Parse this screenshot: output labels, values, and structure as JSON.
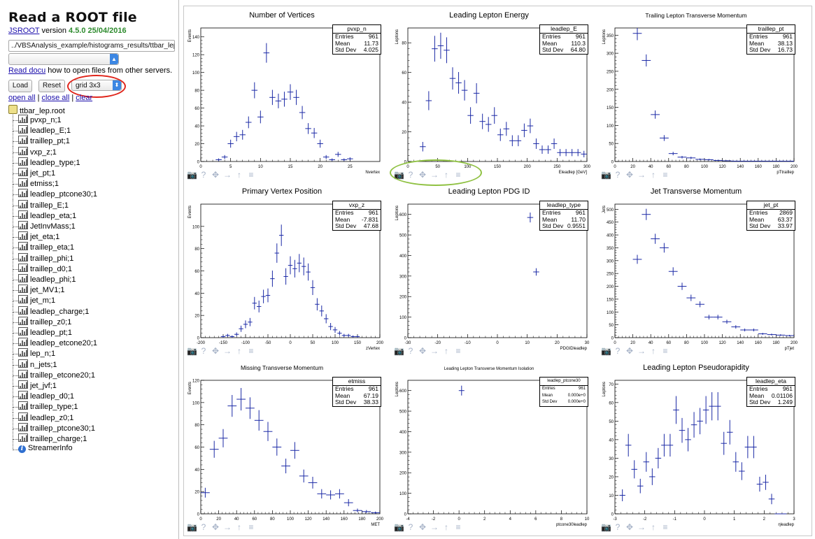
{
  "sidebar": {
    "title": "Read a ROOT file",
    "jsroot_link": "JSROOT",
    "version_prefix": "version",
    "version": "4.5.0 25/04/2016",
    "file_path": "../VBSAnalysis_example/histograms_results/ttbar_lep",
    "docu_link": "Read docu",
    "docu_text": "how to open files from other servers.",
    "load_label": "Load",
    "reset_label": "Reset",
    "layout_value": "grid 3x3",
    "open_all": "open all",
    "close_all": "close all",
    "clear": "clear",
    "separator": "|",
    "root_file": "ttbar_lep.root",
    "items": [
      "pvxp_n;1",
      "leadlep_E;1",
      "traillep_pt;1",
      "vxp_z;1",
      "leadlep_type;1",
      "jet_pt;1",
      "etmiss;1",
      "leadlep_ptcone30;1",
      "traillep_E;1",
      "leadlep_eta;1",
      "JetInvMass;1",
      "jet_eta;1",
      "traillep_eta;1",
      "traillep_phi;1",
      "traillep_d0;1",
      "leadlep_phi;1",
      "jet_MV1;1",
      "jet_m;1",
      "leadlep_charge;1",
      "traillep_z0;1",
      "leadlep_pt;1",
      "leadlep_etcone20;1",
      "lep_n;1",
      "n_jets;1",
      "traillep_etcone20;1",
      "jet_jvf;1",
      "leadlep_d0;1",
      "traillep_type;1",
      "leadlep_z0;1",
      "traillep_ptcone30;1",
      "traillep_charge;1"
    ],
    "streamer": "StreamerInfo"
  },
  "colors": {
    "marker": "#1c2aa6",
    "red_annotation": "#e0251b",
    "green_annotation": "#8fc142"
  },
  "chart_data": [
    {
      "type": "scatter",
      "title": "Number of Vertices",
      "title_size": "large",
      "ylabel": "Events",
      "xlabel": "Nvertex",
      "xlim": [
        0,
        30
      ],
      "ylim": [
        0,
        150
      ],
      "xticks": [
        0,
        5,
        10,
        15,
        20,
        25
      ],
      "yticks": [
        0,
        20,
        40,
        60,
        80,
        100,
        120,
        140
      ],
      "stats": {
        "name": "pvxp_n",
        "entries": "961",
        "mean": "11.73",
        "std": "4.025"
      },
      "x": [
        3,
        4,
        5,
        6,
        7,
        8,
        9,
        10,
        11,
        12,
        13,
        14,
        15,
        16,
        17,
        18,
        19,
        20,
        21,
        22,
        23,
        24,
        25
      ],
      "y": [
        2,
        5,
        20,
        28,
        30,
        44,
        80,
        50,
        122,
        72,
        68,
        70,
        78,
        72,
        55,
        37,
        32,
        20,
        5,
        2,
        8,
        2,
        3
      ],
      "err": [
        1.5,
        2.2,
        4.5,
        5.3,
        5.5,
        6.6,
        9,
        7.1,
        11,
        8.5,
        8.2,
        8.4,
        8.8,
        8.5,
        7.4,
        6.1,
        5.7,
        4.5,
        2.2,
        1.5,
        2.8,
        1.5,
        1.7
      ]
    },
    {
      "type": "scatter",
      "title": "Leading Lepton Energy",
      "title_size": "large",
      "ylabel": "Leptons",
      "xlabel": "Eleadlep [GeV]",
      "xlim": [
        0,
        300
      ],
      "ylim": [
        0,
        90
      ],
      "xticks": [
        0,
        50,
        100,
        150,
        200,
        250,
        300
      ],
      "yticks": [
        0,
        20,
        40,
        60,
        80
      ],
      "stats": {
        "name": "leadlep_E",
        "entries": "961",
        "mean": "110.3",
        "std": "64.80"
      },
      "x": [
        25,
        35,
        45,
        55,
        65,
        75,
        85,
        95,
        105,
        115,
        125,
        135,
        145,
        155,
        165,
        175,
        185,
        195,
        205,
        215,
        225,
        235,
        245,
        255,
        265,
        275,
        285,
        295
      ],
      "y": [
        10,
        41,
        76,
        78,
        75,
        56,
        53,
        48,
        31,
        46,
        27,
        25,
        31,
        18,
        22,
        14,
        14,
        21,
        24,
        12,
        8,
        8,
        12,
        6,
        6,
        6,
        6,
        5
      ],
      "err": [
        3.2,
        6.4,
        8.7,
        8.8,
        8.7,
        7.5,
        7.3,
        6.9,
        5.6,
        6.8,
        5.2,
        5,
        5.6,
        4.2,
        4.7,
        3.7,
        3.7,
        4.6,
        4.9,
        3.5,
        2.8,
        2.8,
        3.5,
        2.4,
        2.4,
        2.4,
        2.4,
        2.2
      ]
    },
    {
      "type": "scatter",
      "title": "Trailing Lepton Transverse Momentum",
      "title_size": "small",
      "ylabel": "Leptons",
      "xlabel": "pTtraillep",
      "xlim": [
        0,
        200
      ],
      "ylim": [
        0,
        370
      ],
      "xticks": [
        0,
        20,
        40,
        60,
        80,
        100,
        120,
        140,
        160,
        180,
        200
      ],
      "yticks": [
        0,
        50,
        100,
        150,
        200,
        250,
        300,
        350
      ],
      "stats": {
        "name": "traillep_pt",
        "entries": "961",
        "mean": "38.13",
        "std": "16.73"
      },
      "x": [
        25,
        35,
        45,
        55,
        65,
        75,
        85,
        95,
        105,
        115,
        125,
        135,
        145,
        155,
        165,
        175,
        185,
        195
      ],
      "y": [
        355,
        280,
        130,
        65,
        22,
        12,
        10,
        6,
        5,
        3,
        2,
        1,
        1,
        1,
        1,
        1,
        1,
        1
      ],
      "err": [
        18.8,
        16.7,
        11.4,
        8.1,
        4.7,
        3.5,
        3.2,
        2.4,
        2.2,
        1.7,
        1.4,
        1,
        1,
        1,
        1,
        1,
        1,
        1
      ]
    },
    {
      "type": "scatter",
      "title": "Primary Vertex Position",
      "title_size": "large",
      "ylabel": "Events",
      "xlabel": "zVertex",
      "xlim": [
        -200,
        200
      ],
      "ylim": [
        0,
        120
      ],
      "xticks": [
        -200,
        -150,
        -100,
        -50,
        0,
        50,
        100,
        150,
        200
      ],
      "yticks": [
        0,
        20,
        40,
        60,
        80,
        100
      ],
      "stats": {
        "name": "vxp_z",
        "entries": "961",
        "mean": "-7.831",
        "std": "47.68"
      },
      "x": [
        -150,
        -140,
        -130,
        -120,
        -110,
        -100,
        -90,
        -80,
        -70,
        -60,
        -50,
        -40,
        -30,
        -20,
        -10,
        0,
        10,
        20,
        30,
        40,
        50,
        60,
        70,
        80,
        90,
        100,
        110,
        120,
        130,
        140,
        150
      ],
      "y": [
        1,
        2,
        1,
        3,
        8,
        12,
        14,
        31,
        28,
        37,
        38,
        53,
        76,
        92,
        55,
        65,
        62,
        67,
        64,
        59,
        45,
        30,
        24,
        17,
        10,
        7,
        4,
        2,
        2,
        1,
        1
      ],
      "err": [
        1,
        1.4,
        1,
        1.7,
        2.8,
        3.5,
        3.7,
        5.6,
        5.3,
        6.1,
        6.2,
        7.3,
        8.7,
        9.6,
        7.4,
        8.1,
        7.9,
        8.2,
        8,
        7.7,
        6.7,
        5.5,
        4.9,
        4.1,
        3.2,
        2.6,
        2,
        1.4,
        1.4,
        1,
        1
      ]
    },
    {
      "type": "scatter",
      "title": "Leading Lepton PDG ID",
      "title_size": "large",
      "ylabel": "Leptons",
      "xlabel": "PDGIDleadlep",
      "xlim": [
        -30,
        30
      ],
      "ylim": [
        0,
        650
      ],
      "xticks": [
        -30,
        -20,
        -10,
        0,
        10,
        20,
        30
      ],
      "yticks": [
        0,
        100,
        200,
        300,
        400,
        500,
        600
      ],
      "stats": {
        "name": "leadlep_type",
        "entries": "961",
        "mean": "11.70",
        "std": "0.9551"
      },
      "x": [
        11,
        13
      ],
      "y": [
        585,
        320
      ],
      "err": [
        24,
        18
      ]
    },
    {
      "type": "scatter",
      "title": "Jet Transverse Momentum",
      "title_size": "large",
      "ylabel": "Jets",
      "xlabel": "pTjet",
      "xlim": [
        0,
        200
      ],
      "ylim": [
        0,
        520
      ],
      "xticks": [
        0,
        20,
        40,
        60,
        80,
        100,
        120,
        140,
        160,
        180,
        200
      ],
      "yticks": [
        0,
        50,
        100,
        150,
        200,
        250,
        300,
        350,
        400,
        450,
        500
      ],
      "stats": {
        "name": "jet_pt",
        "entries": "2869",
        "mean": "63.37",
        "std": "33.97"
      },
      "x": [
        25,
        35,
        45,
        55,
        65,
        75,
        85,
        95,
        105,
        115,
        125,
        135,
        145,
        155,
        165,
        175,
        185,
        195
      ],
      "y": [
        305,
        480,
        385,
        350,
        258,
        200,
        155,
        130,
        80,
        80,
        62,
        42,
        30,
        30,
        15,
        12,
        10,
        8
      ],
      "err": [
        17.5,
        21.9,
        19.6,
        18.7,
        16.1,
        14.1,
        12.4,
        11.4,
        8.9,
        8.9,
        7.9,
        6.5,
        5.5,
        5.5,
        3.9,
        3.5,
        3.2,
        2.8
      ]
    },
    {
      "type": "scatter",
      "title": "Missing Transverse Momentum",
      "title_size": "small",
      "ylabel": "Events",
      "xlabel": "MET",
      "xlim": [
        0,
        200
      ],
      "ylim": [
        0,
        120
      ],
      "xticks": [
        0,
        20,
        40,
        60,
        80,
        100,
        120,
        140,
        160,
        180,
        200
      ],
      "yticks": [
        0,
        20,
        40,
        60,
        80,
        100,
        120
      ],
      "stats": {
        "name": "etmiss",
        "entries": "961",
        "mean": "67.19",
        "std": "38.33"
      },
      "x": [
        5,
        15,
        25,
        35,
        45,
        55,
        65,
        75,
        85,
        95,
        105,
        115,
        125,
        135,
        145,
        155,
        165,
        175,
        185,
        195
      ],
      "y": [
        19,
        58,
        68,
        97,
        103,
        95,
        84,
        74,
        60,
        43,
        57,
        34,
        28,
        18,
        17,
        18,
        10,
        3,
        2,
        1
      ],
      "err": [
        4.4,
        7.6,
        8.2,
        9.8,
        10.1,
        9.7,
        9.2,
        8.6,
        7.7,
        6.6,
        7.5,
        5.8,
        5.3,
        4.2,
        4.1,
        4.2,
        3.2,
        1.7,
        1.4,
        1
      ]
    },
    {
      "type": "scatter",
      "title": "Leading Lepton Transverse Momentum Isolation",
      "title_size": "tiny",
      "ylabel": "Leptons",
      "xlabel": "ptcone30leadlep",
      "xlim": [
        -4,
        10
      ],
      "ylim": [
        0,
        650
      ],
      "xticks": [
        -4,
        -2,
        0,
        2,
        4,
        6,
        8,
        10
      ],
      "yticks": [
        0,
        100,
        200,
        300,
        400,
        500,
        600
      ],
      "stats": {
        "name": "leadlep_ptcone30",
        "entries": "961",
        "mean": "0.000e+0",
        "std": "0.000e+0"
      },
      "x": [
        0.2
      ],
      "y": [
        600
      ],
      "err": [
        24
      ]
    },
    {
      "type": "scatter",
      "title": "Leading Lepton Pseudorapidity",
      "title_size": "large",
      "ylabel": "Leptons",
      "xlabel": "ηleadlep",
      "xlim": [
        -3,
        3
      ],
      "ylim": [
        0,
        72
      ],
      "xticks": [
        -3,
        -2,
        -1,
        0,
        1,
        2,
        3
      ],
      "yticks": [
        0,
        10,
        20,
        30,
        40,
        50,
        60,
        70
      ],
      "stats": {
        "name": "leadlep_eta",
        "entries": "961",
        "mean": "0.01106",
        "std": "1.249"
      },
      "x": [
        -2.75,
        -2.55,
        -2.35,
        -2.15,
        -1.95,
        -1.75,
        -1.55,
        -1.35,
        -1.15,
        -0.95,
        -0.75,
        -0.55,
        -0.35,
        -0.15,
        0.05,
        0.25,
        0.45,
        0.65,
        0.85,
        1.05,
        1.25,
        1.45,
        1.65,
        1.85,
        2.05,
        2.25,
        2.45,
        2.65
      ],
      "y": [
        10,
        37,
        24,
        15,
        28,
        20,
        30,
        37,
        37,
        56,
        45,
        40,
        48,
        50,
        56,
        58,
        58,
        38,
        44,
        28,
        23,
        36,
        36,
        16,
        17,
        8,
        0,
        0
      ],
      "err": [
        3.2,
        6.1,
        4.9,
        3.9,
        5.3,
        4.5,
        5.5,
        6.1,
        6.1,
        7.5,
        6.7,
        6.3,
        6.9,
        7.1,
        7.5,
        7.6,
        7.6,
        6.2,
        6.6,
        5.3,
        4.8,
        6,
        6,
        4,
        4.1,
        2.8,
        0,
        0
      ]
    }
  ]
}
